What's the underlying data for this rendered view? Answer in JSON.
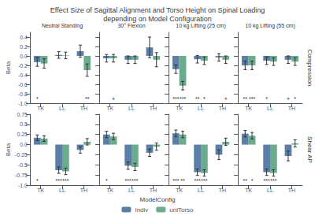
{
  "title": "Effect Size of Sagittal Alignment and Torso Height on Spinal Loading\ndepending on Model Configuration",
  "legend_title": "ModelConfig",
  "legend": "bottom",
  "chart_data": [
    {
      "type": "bar",
      "title": "Neutral Standing",
      "ylabel": "Beta",
      "categories": [
        "TK",
        "LL",
        "TH"
      ],
      "series": [
        {
          "name": "Indiv",
          "color": "#5b7fa6",
          "values": [
            -0.13,
            0.02,
            0.1
          ],
          "errors": [
            0.09,
            0.07,
            0.13
          ]
        },
        {
          "name": "uniTorso",
          "color": "#6bab8e",
          "values": [
            -0.16,
            0.01,
            -0.3
          ],
          "errors": [
            0.1,
            0.07,
            0.13
          ]
        }
      ],
      "annotations": [
        {
          "category": "TK",
          "series": "Indiv",
          "text": "*"
        },
        {
          "category": "TH",
          "series": "uniTorso",
          "text": "**"
        }
      ],
      "ylim": [
        -1.0,
        0.5
      ],
      "yticks": [
        0.4,
        0.2,
        {
          "value": 0,
          "label": "0.0"
        },
        -0.2,
        -0.4,
        -0.6,
        -0.8,
        {
          "value": -1,
          "label": "-1.0"
        }
      ],
      "grid": false
    },
    {
      "type": "bar",
      "title": "30° Flexion",
      "categories": [
        "TK",
        "LL",
        "TH"
      ],
      "series": [
        {
          "name": "Indiv",
          "color": "#5b7fa6",
          "values": [
            -0.05,
            -0.08,
            0.18
          ],
          "errors": [
            0.08,
            0.08,
            0.22
          ]
        },
        {
          "name": "uniTorso",
          "color": "#6bab8e",
          "values": [
            -0.05,
            -0.08,
            -0.08
          ],
          "errors": [
            0.08,
            0.08,
            0.15
          ]
        }
      ],
      "annotations": [
        {
          "category": "TK",
          "series": "uniTorso",
          "text": "+"
        }
      ],
      "ylim": [
        -1.0,
        0.5
      ],
      "yticks": [
        0.4,
        0.2,
        0,
        -0.2,
        -0.4,
        -0.6,
        -0.8,
        -1
      ],
      "tick_labels": "x",
      "grid": false
    },
    {
      "type": "bar",
      "title": "10 kg Lifting (25 cm)",
      "categories": [
        "TK",
        "LL",
        "TH"
      ],
      "series": [
        {
          "name": "Indiv",
          "color": "#5b7fa6",
          "values": [
            -0.28,
            -0.07,
            -0.03
          ],
          "errors": [
            0.09,
            0.08,
            0.08
          ]
        },
        {
          "name": "uniTorso",
          "color": "#6bab8e",
          "values": [
            -0.63,
            -0.1,
            -0.08
          ],
          "errors": [
            0.09,
            0.08,
            0.08
          ]
        }
      ],
      "annotations": [
        {
          "category": "TK",
          "series": "Indiv",
          "text": "***"
        },
        {
          "category": "TK",
          "series": "uniTorso",
          "text": "***"
        },
        {
          "category": "LL",
          "series": "Indiv",
          "text": "**"
        },
        {
          "category": "LL",
          "series": "uniTorso",
          "text": "*"
        },
        {
          "category": "TH",
          "series": "uniTorso",
          "text": "+"
        }
      ],
      "ylim": [
        -1.0,
        0.5
      ],
      "yticks": [
        0.4,
        0.2,
        0,
        -0.2,
        -0.4,
        -0.6,
        -0.8,
        -1
      ],
      "tick_labels": "x",
      "grid": false
    },
    {
      "type": "bar",
      "title": "10 kg Lifting (55 cm)",
      "row_label": "Compression",
      "categories": [
        "TK",
        "LL",
        "TH"
      ],
      "series": [
        {
          "name": "Indiv",
          "color": "#5b7fa6",
          "values": [
            -0.2,
            -0.1,
            -0.08
          ],
          "errors": [
            0.09,
            0.08,
            0.08
          ]
        },
        {
          "name": "uniTorso",
          "color": "#6bab8e",
          "values": [
            -0.2,
            -0.12,
            -0.12
          ],
          "errors": [
            0.09,
            0.08,
            0.08
          ]
        }
      ],
      "annotations": [
        {
          "category": "TK",
          "series": "Indiv",
          "text": "**"
        },
        {
          "category": "TK",
          "series": "uniTorso",
          "text": "***"
        },
        {
          "category": "LL",
          "series": "Indiv",
          "text": "*"
        },
        {
          "category": "TH",
          "series": "Indiv",
          "text": "+"
        },
        {
          "category": "TH",
          "series": "uniTorso",
          "text": "*"
        }
      ],
      "ylim": [
        -1.0,
        0.5
      ],
      "yticks": [
        0.4,
        0.2,
        0,
        -0.2,
        -0.4,
        -0.6,
        -0.8,
        -1
      ],
      "tick_labels": "x",
      "grid": false
    },
    {
      "type": "bar",
      "ylabel": "Beta",
      "categories": [
        "TK",
        "LL",
        "TH"
      ],
      "series": [
        {
          "name": "Indiv",
          "color": "#5b7fa6",
          "values": [
            0.17,
            -0.63,
            -0.13
          ],
          "errors": [
            0.07,
            0.08,
            0.08
          ]
        },
        {
          "name": "uniTorso",
          "color": "#6bab8e",
          "values": [
            0.15,
            -0.66,
            0.07
          ],
          "errors": [
            0.07,
            0.08,
            0.08
          ]
        }
      ],
      "annotations": [
        {
          "category": "TK",
          "series": "Indiv",
          "text": "*"
        },
        {
          "category": "LL",
          "series": "Indiv",
          "text": "***"
        },
        {
          "category": "LL",
          "series": "uniTorso",
          "text": "***"
        }
      ],
      "ylim": [
        -1.0,
        0.75
      ],
      "yticks": [
        0.75,
        0.5,
        0.25,
        {
          "value": 0,
          "label": "0.0"
        },
        -0.25,
        -0.5,
        -0.75,
        {
          "value": -1,
          "label": "-1.0"
        }
      ],
      "grid": false
    },
    {
      "type": "bar",
      "categories": [
        "TK",
        "LL",
        "TH"
      ],
      "series": [
        {
          "name": "Indiv",
          "color": "#5b7fa6",
          "values": [
            0.25,
            -0.52,
            -0.2
          ],
          "errors": [
            0.08,
            0.09,
            0.09
          ]
        },
        {
          "name": "uniTorso",
          "color": "#6bab8e",
          "values": [
            0.2,
            -0.55,
            -0.05
          ],
          "errors": [
            0.08,
            0.09,
            0.09
          ]
        }
      ],
      "annotations": [
        {
          "category": "TK",
          "series": "Indiv",
          "text": "*"
        },
        {
          "category": "LL",
          "series": "Indiv",
          "text": "***"
        },
        {
          "category": "LL",
          "series": "uniTorso",
          "text": "***"
        }
      ],
      "ylim": [
        -1.0,
        0.75
      ],
      "yticks": [
        0.75,
        0.5,
        0.25,
        0,
        -0.25,
        -0.5,
        -0.75,
        -1
      ],
      "tick_labels": "x",
      "grid": false
    },
    {
      "type": "bar",
      "categories": [
        "TK",
        "LL",
        "TH"
      ],
      "series": [
        {
          "name": "Indiv",
          "color": "#5b7fa6",
          "values": [
            0.28,
            -0.68,
            -0.25
          ],
          "errors": [
            0.08,
            0.08,
            0.12
          ]
        },
        {
          "name": "uniTorso",
          "color": "#6bab8e",
          "values": [
            0.25,
            -0.7,
            0.07
          ],
          "errors": [
            0.08,
            0.08,
            0.09
          ]
        }
      ],
      "annotations": [
        {
          "category": "TK",
          "series": "Indiv",
          "text": "***"
        },
        {
          "category": "TK",
          "series": "uniTorso",
          "text": "**"
        },
        {
          "category": "LL",
          "series": "Indiv",
          "text": "***"
        },
        {
          "category": "LL",
          "series": "uniTorso",
          "text": "***"
        }
      ],
      "ylim": [
        -1.0,
        0.75
      ],
      "yticks": [
        0.75,
        0.5,
        0.25,
        0,
        -0.25,
        -0.5,
        -0.75,
        -1
      ],
      "tick_labels": "x",
      "grid": false
    },
    {
      "type": "bar",
      "row_label": "Shear AP",
      "categories": [
        "TK",
        "LL",
        "TH"
      ],
      "series": [
        {
          "name": "Indiv",
          "color": "#5b7fa6",
          "values": [
            0.27,
            -0.68,
            -0.28
          ],
          "errors": [
            0.08,
            0.08,
            0.12
          ]
        },
        {
          "name": "uniTorso",
          "color": "#6bab8e",
          "values": [
            0.22,
            -0.7,
            0.03
          ],
          "errors": [
            0.08,
            0.08,
            0.09
          ]
        }
      ],
      "annotations": [
        {
          "category": "TK",
          "series": "Indiv",
          "text": "**"
        },
        {
          "category": "TK",
          "series": "uniTorso",
          "text": "*"
        },
        {
          "category": "LL",
          "series": "Indiv",
          "text": "***"
        },
        {
          "category": "LL",
          "series": "uniTorso",
          "text": "***"
        }
      ],
      "ylim": [
        -1.0,
        0.75
      ],
      "yticks": [
        0.75,
        0.5,
        0.25,
        0,
        -0.25,
        -0.5,
        -0.75,
        -1
      ],
      "tick_labels": "x",
      "grid": false
    }
  ]
}
